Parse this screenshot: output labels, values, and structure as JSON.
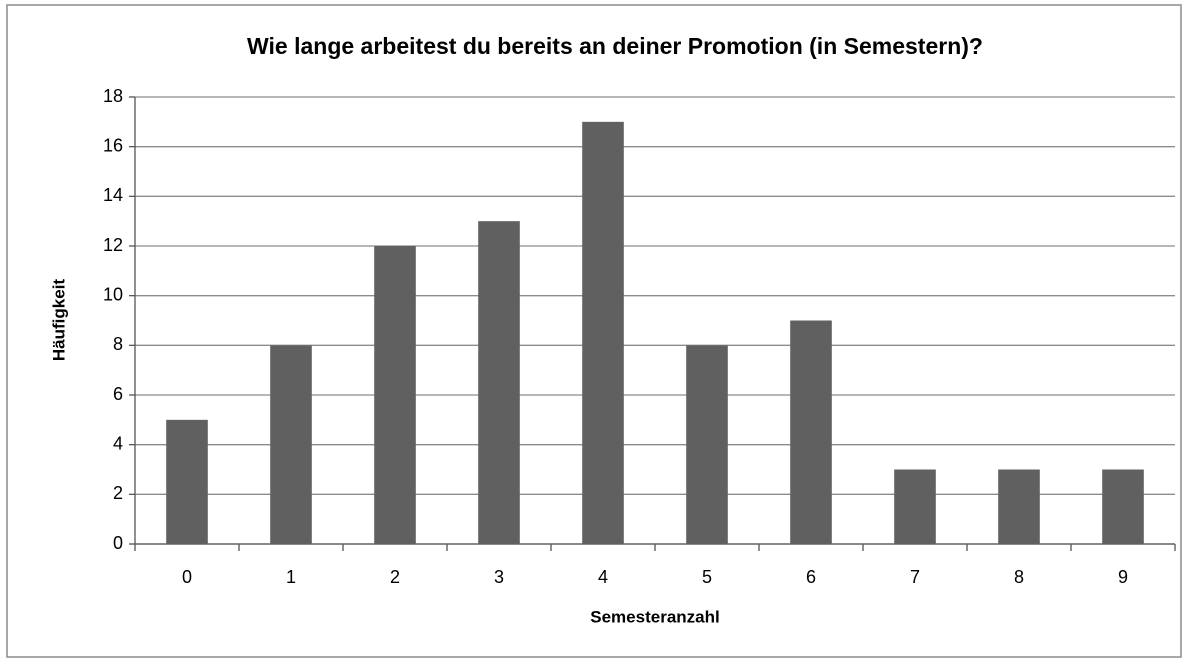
{
  "chart_data": {
    "type": "bar",
    "title": "Wie lange arbeitest du bereits an deiner Promotion (in Semestern)?",
    "x_label": "Semesteranzahl",
    "y_label": "Häufigkeit",
    "categories": [
      "0",
      "1",
      "2",
      "3",
      "4",
      "5",
      "6",
      "7",
      "8",
      "9"
    ],
    "values": [
      5,
      8,
      12,
      13,
      17,
      8,
      9,
      3,
      3,
      3
    ],
    "color": "#606060",
    "ylim": [
      0,
      18
    ],
    "yticks": [
      0,
      2,
      4,
      6,
      8,
      10,
      12,
      14,
      16,
      18
    ],
    "grid": true
  }
}
